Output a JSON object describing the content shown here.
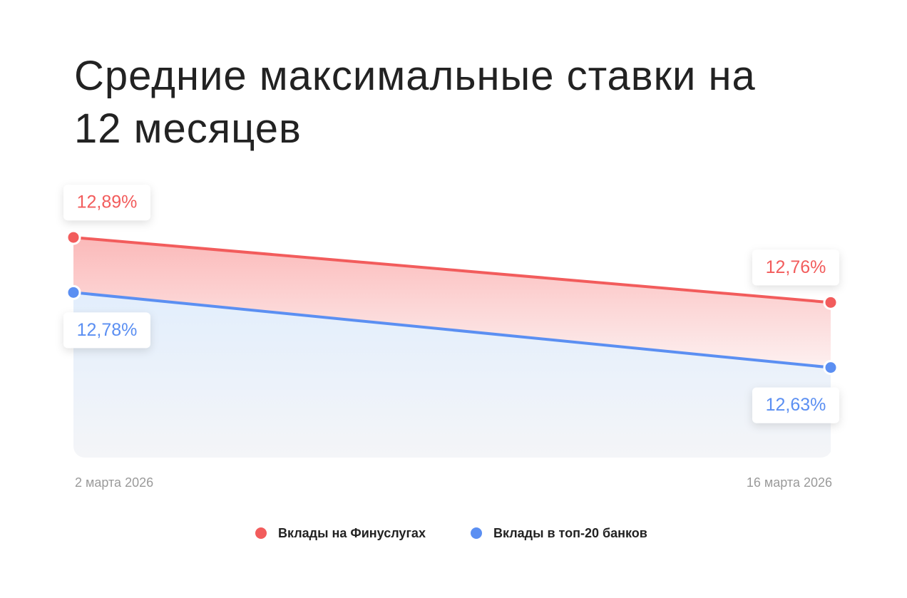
{
  "chart_data": {
    "type": "line",
    "title": "Средние максимальные ставки на 12 месяцев",
    "categories": [
      "2 марта 2026",
      "16 марта 2026"
    ],
    "series": [
      {
        "name": "Вклады на Финуслугах",
        "color": "#f25c5c",
        "values": [
          12.89,
          12.76
        ],
        "value_labels": [
          "12,89%",
          "12,76%"
        ]
      },
      {
        "name": "Вклады в топ-20 банков",
        "color": "#5b8ff2",
        "values": [
          12.78,
          12.63
        ],
        "value_labels": [
          "12,78%",
          "12,63%"
        ]
      }
    ],
    "ylim": [
      12.45,
      12.93
    ]
  }
}
